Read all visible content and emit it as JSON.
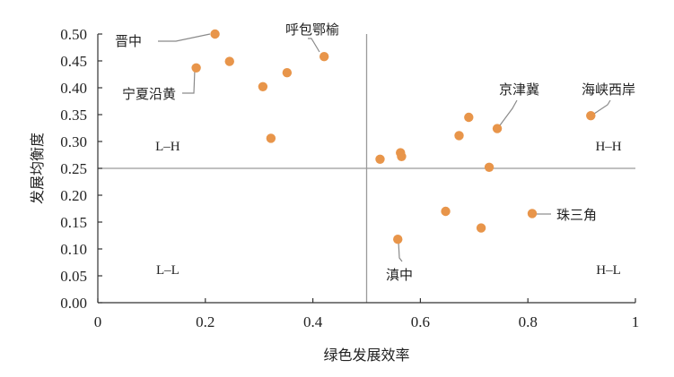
{
  "chart_data": {
    "type": "scatter",
    "xlabel": "绿色发展效率",
    "ylabel": "发展均衡度",
    "xlim": [
      0,
      1
    ],
    "ylim": [
      0,
      0.5
    ],
    "x_ticks": [
      "0",
      "0.2",
      "0.4",
      "0.6",
      "0.8",
      "1"
    ],
    "y_ticks": [
      "0.00",
      "0.05",
      "0.10",
      "0.15",
      "0.20",
      "0.25",
      "0.30",
      "0.35",
      "0.40",
      "0.45",
      "0.50"
    ],
    "reference_lines": {
      "x": 0.5,
      "y": 0.25
    },
    "quadrants": [
      "L–H",
      "H–H",
      "L–L",
      "H–L"
    ],
    "point_color": "#e8954a",
    "points": [
      {
        "x": 0.218,
        "y": 0.5,
        "label": "晋中"
      },
      {
        "x": 0.183,
        "y": 0.437,
        "label": "宁夏沿黄"
      },
      {
        "x": 0.245,
        "y": 0.449
      },
      {
        "x": 0.307,
        "y": 0.402
      },
      {
        "x": 0.352,
        "y": 0.428
      },
      {
        "x": 0.421,
        "y": 0.458,
        "label": "呼包鄂榆"
      },
      {
        "x": 0.322,
        "y": 0.306
      },
      {
        "x": 0.525,
        "y": 0.267
      },
      {
        "x": 0.563,
        "y": 0.279
      },
      {
        "x": 0.565,
        "y": 0.272
      },
      {
        "x": 0.672,
        "y": 0.311
      },
      {
        "x": 0.69,
        "y": 0.345
      },
      {
        "x": 0.743,
        "y": 0.324,
        "label": "京津冀"
      },
      {
        "x": 0.728,
        "y": 0.252
      },
      {
        "x": 0.917,
        "y": 0.348,
        "label": "海峡西岸"
      },
      {
        "x": 0.647,
        "y": 0.17
      },
      {
        "x": 0.713,
        "y": 0.139
      },
      {
        "x": 0.808,
        "y": 0.166,
        "label": "珠三角"
      },
      {
        "x": 0.558,
        "y": 0.118,
        "label": "滇中"
      }
    ]
  }
}
